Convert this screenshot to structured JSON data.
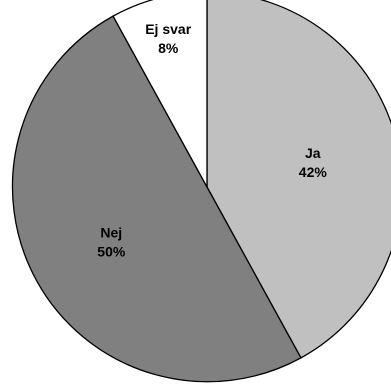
{
  "chart_data": {
    "type": "pie",
    "categories": [
      "Ja",
      "Nej",
      "Ej svar"
    ],
    "values": [
      42,
      50,
      8
    ],
    "value_labels": [
      "42%",
      "50%",
      "8%"
    ],
    "colors": [
      "#c0c0c0",
      "#808080",
      "#ffffff"
    ],
    "start_angle": "12 o'clock",
    "direction": "clockwise",
    "legend": "none",
    "title": ""
  }
}
